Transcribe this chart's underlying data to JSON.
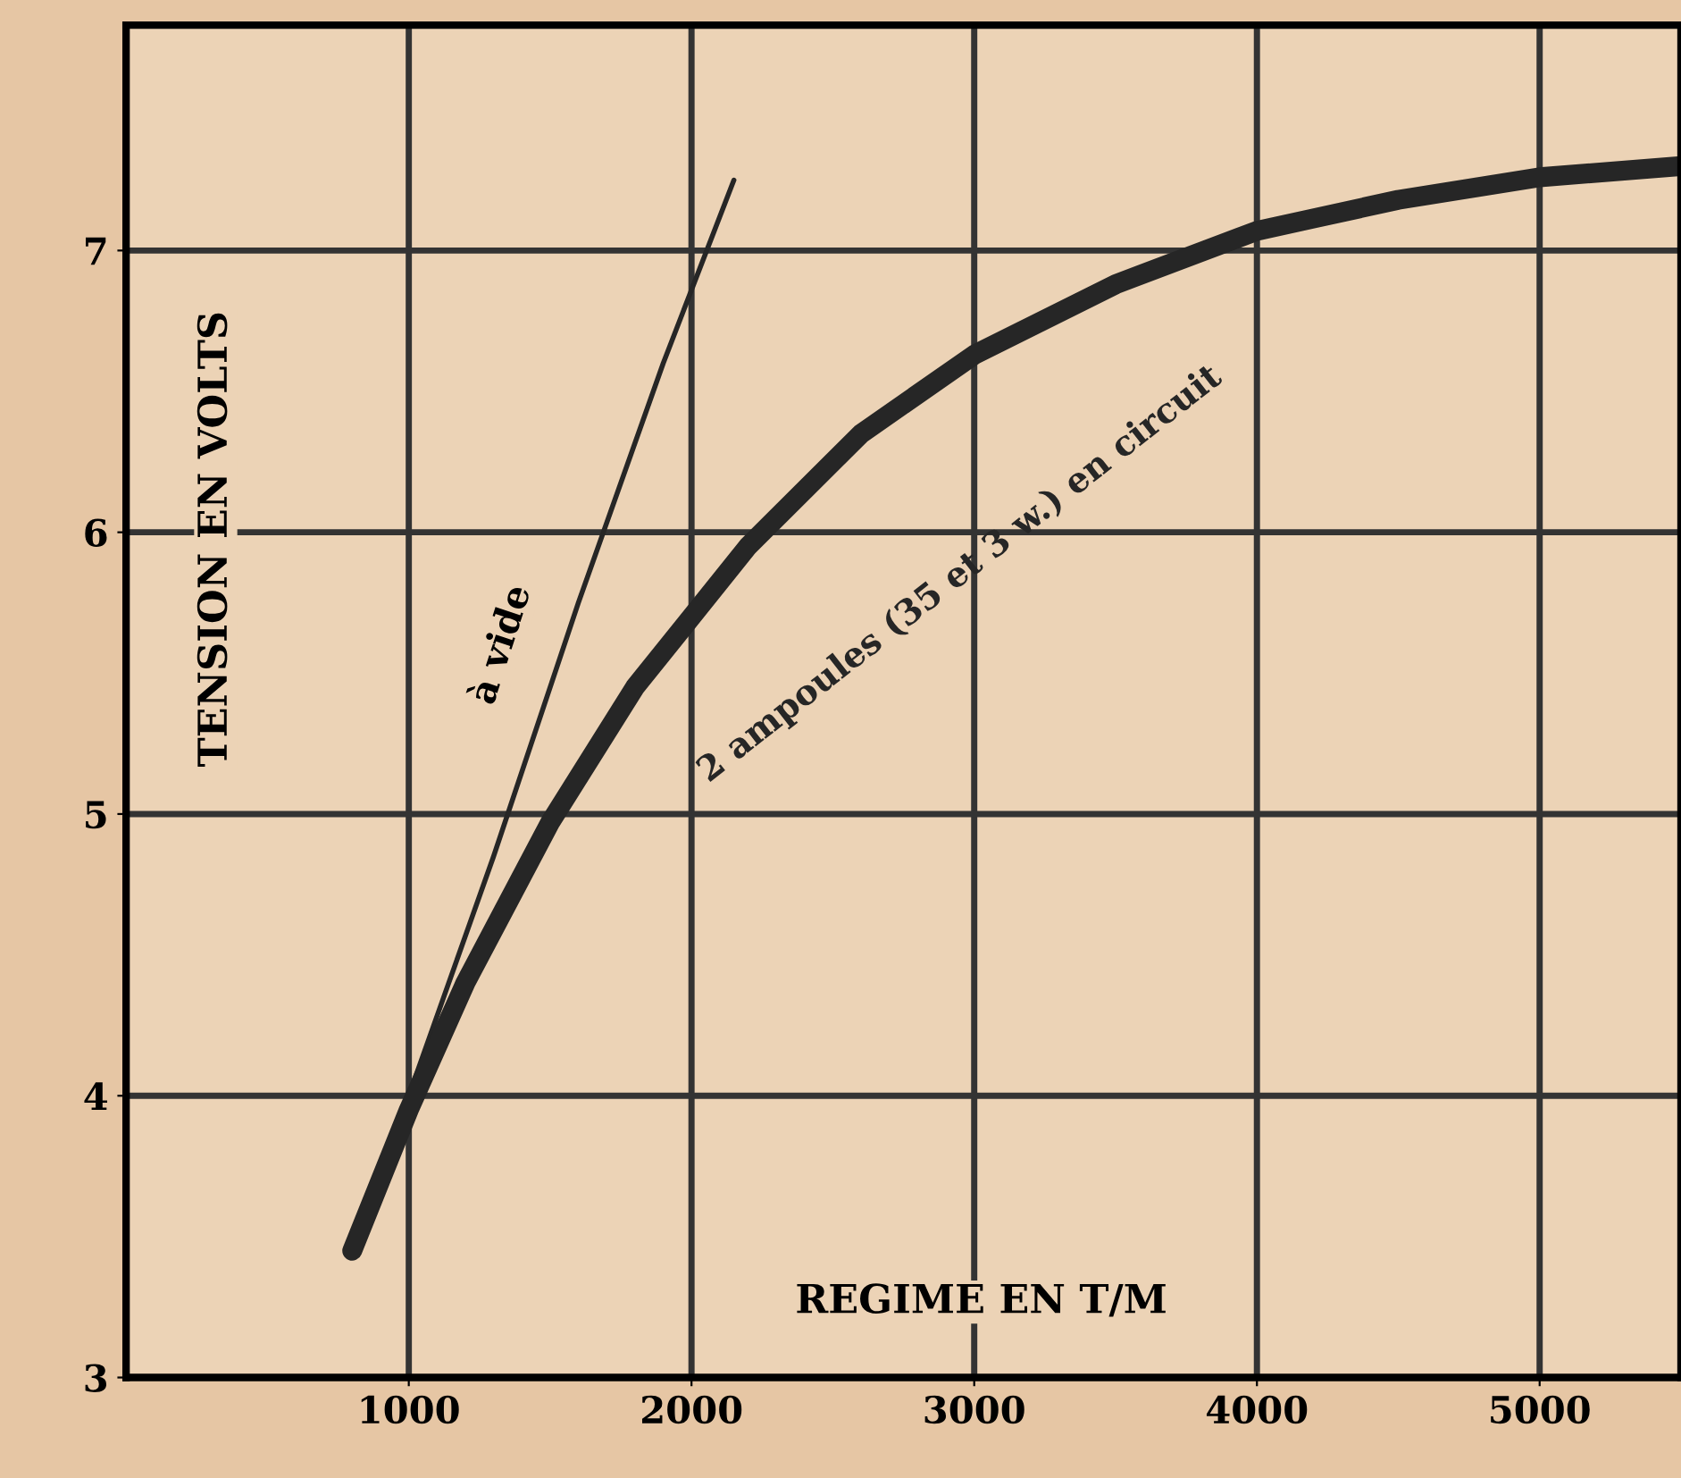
{
  "chart_data": {
    "type": "line",
    "xlabel": "REGIME EN T/M",
    "ylabel": "TENSION EN VOLTS",
    "series": [
      {
        "name": "à vide",
        "color": "#262626",
        "x": [
          800,
          1000,
          1300,
          1600,
          1900,
          2150
        ],
        "values": [
          3.45,
          4.0,
          4.85,
          5.75,
          6.6,
          7.25
        ]
      },
      {
        "name": "2 ampoules (35 et 3 w.) en circuit",
        "color": "#262626",
        "x": [
          800,
          1000,
          1200,
          1500,
          1800,
          2200,
          2600,
          3000,
          3500,
          4000,
          4500,
          5000,
          5500
        ],
        "values": [
          3.45,
          3.95,
          4.4,
          4.97,
          5.45,
          5.95,
          6.35,
          6.63,
          6.88,
          7.07,
          7.18,
          7.26,
          7.3
        ]
      }
    ],
    "xlim": [
      0,
      5500
    ],
    "ylim": [
      3,
      7.8
    ],
    "xticks": [
      1000,
      2000,
      3000,
      4000,
      5000
    ],
    "yticks": [
      3,
      4,
      5,
      6,
      7
    ],
    "grid": true,
    "legend": false,
    "marker": "none",
    "line_style": "solid"
  }
}
